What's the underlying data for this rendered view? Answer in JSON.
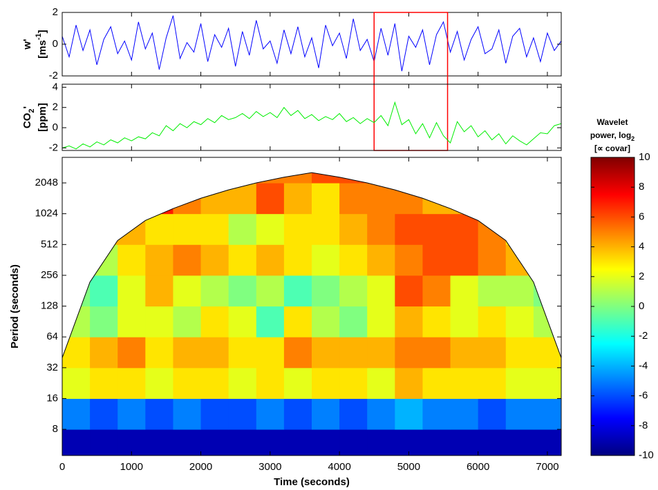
{
  "chart_data": [
    {
      "type": "line",
      "ylabel": [
        "w'",
        "[ms",
        "-1",
        "]"
      ],
      "color": "#0000ff",
      "xlim": [
        0,
        7200
      ],
      "xticks": [
        0,
        1000,
        2000,
        3000,
        4000,
        5000,
        6000,
        7000
      ],
      "ylim": [
        -2,
        2
      ],
      "yticks": [
        -2,
        0,
        2
      ],
      "highlight_x": [
        4500,
        5560
      ],
      "highlight_color": "#ff0000",
      "x": [
        0,
        100,
        200,
        300,
        400,
        500,
        600,
        700,
        800,
        900,
        1000,
        1100,
        1200,
        1300,
        1400,
        1500,
        1600,
        1700,
        1800,
        1900,
        2000,
        2100,
        2200,
        2300,
        2400,
        2500,
        2600,
        2700,
        2800,
        2900,
        3000,
        3100,
        3200,
        3300,
        3400,
        3500,
        3600,
        3700,
        3800,
        3900,
        4000,
        4100,
        4200,
        4300,
        4400,
        4500,
        4600,
        4700,
        4800,
        4900,
        5000,
        5100,
        5200,
        5300,
        5400,
        5500,
        5600,
        5700,
        5800,
        5900,
        6000,
        6100,
        6200,
        6300,
        6400,
        6500,
        6600,
        6700,
        6800,
        6900,
        7000,
        7100,
        7200
      ],
      "values": [
        0.5,
        -0.8,
        1.2,
        -0.4,
        0.9,
        -1.3,
        0.3,
        1.1,
        -0.6,
        0.2,
        -1.0,
        1.4,
        -0.3,
        0.7,
        -1.6,
        0.4,
        1.8,
        -0.9,
        0.1,
        -0.5,
        1.3,
        -1.1,
        0.6,
        -0.2,
        1.0,
        -1.4,
        0.8,
        -0.7,
        1.5,
        -0.3,
        0.2,
        -1.2,
        0.9,
        -0.6,
        1.1,
        -0.8,
        0.4,
        -1.5,
        1.2,
        -0.1,
        0.7,
        -0.9,
        1.6,
        -0.4,
        0.3,
        -1.1,
        1.0,
        -0.7,
        1.3,
        -1.7,
        0.5,
        -0.2,
        0.9,
        -1.3,
        0.6,
        1.4,
        -0.5,
        0.8,
        -1.0,
        0.3,
        1.1,
        -0.6,
        -0.3,
        0.9,
        -1.2,
        0.5,
        1.0,
        -0.8,
        0.4,
        -1.1,
        0.7,
        -0.4,
        0.2
      ]
    },
    {
      "type": "line",
      "ylabel": [
        "CO",
        "2",
        "'",
        "[ppm]"
      ],
      "color": "#00ee00",
      "xlim": [
        0,
        7200
      ],
      "xticks": [
        0,
        1000,
        2000,
        3000,
        4000,
        5000,
        6000,
        7000
      ],
      "ylim": [
        -2.25,
        4.3
      ],
      "yticks": [
        -2,
        0,
        2,
        4
      ],
      "x": [
        0,
        100,
        200,
        300,
        400,
        500,
        600,
        700,
        800,
        900,
        1000,
        1100,
        1200,
        1300,
        1400,
        1500,
        1600,
        1700,
        1800,
        1900,
        2000,
        2100,
        2200,
        2300,
        2400,
        2500,
        2600,
        2700,
        2800,
        2900,
        3000,
        3100,
        3200,
        3300,
        3400,
        3500,
        3600,
        3700,
        3800,
        3900,
        4000,
        4100,
        4200,
        4300,
        4400,
        4500,
        4600,
        4700,
        4800,
        4900,
        5000,
        5100,
        5200,
        5300,
        5400,
        5500,
        5600,
        5700,
        5800,
        5900,
        6000,
        6100,
        6200,
        6300,
        6400,
        6500,
        6600,
        6700,
        6800,
        6900,
        7000,
        7100,
        7200
      ],
      "values": [
        -2.0,
        -1.8,
        -2.1,
        -1.6,
        -1.9,
        -1.4,
        -1.7,
        -1.2,
        -1.5,
        -1.0,
        -1.3,
        -0.9,
        -1.1,
        -0.5,
        -0.8,
        0.2,
        -0.3,
        0.4,
        0.0,
        0.6,
        0.3,
        0.9,
        0.5,
        1.2,
        0.8,
        1.0,
        1.4,
        0.9,
        1.6,
        1.1,
        1.5,
        1.0,
        2.0,
        1.2,
        1.7,
        0.9,
        1.3,
        0.7,
        1.1,
        0.8,
        1.4,
        0.6,
        1.0,
        0.4,
        0.9,
        0.5,
        1.2,
        0.2,
        2.5,
        0.3,
        0.8,
        -0.6,
        0.4,
        -1.0,
        0.5,
        -0.8,
        -1.5,
        0.6,
        -0.4,
        0.2,
        -0.9,
        -0.3,
        -1.2,
        -0.6,
        -1.6,
        -0.8,
        -1.3,
        -1.7,
        -1.1,
        -0.5,
        -0.6,
        0.2,
        0.4
      ]
    },
    {
      "type": "heatmap",
      "xlabel": "Time (seconds)",
      "ylabel": "Period (seconds)",
      "log_y": true,
      "xlim": [
        0,
        7200
      ],
      "xticks": [
        0,
        1000,
        2000,
        3000,
        4000,
        5000,
        6000,
        7000
      ],
      "ylim": [
        4.44,
        3640
      ],
      "yticks": [
        8,
        16,
        32,
        64,
        128,
        256,
        512,
        1024,
        2048
      ],
      "time_edges": [
        0,
        400,
        800,
        1200,
        1600,
        2000,
        2400,
        2800,
        3200,
        3600,
        4000,
        4400,
        4800,
        5200,
        5600,
        6000,
        6400,
        6800,
        7200
      ],
      "period_edges": [
        4,
        8,
        16,
        32,
        64,
        128,
        256,
        512,
        1024,
        2048,
        4096
      ],
      "values": [
        [
          -9,
          -9,
          -9,
          -9,
          -9,
          -9,
          -9,
          -9,
          -9,
          -9,
          -9,
          -9,
          -9,
          -9,
          -9,
          -9,
          -9,
          -9
        ],
        [
          -5,
          -6,
          -5,
          -6,
          -5,
          -6,
          -6,
          -5,
          -6,
          -5,
          -6,
          -5,
          -4,
          -5,
          -5,
          -6,
          -5,
          -5
        ],
        [
          2,
          3,
          3,
          2,
          3,
          3,
          2,
          3,
          2,
          3,
          3,
          2,
          4,
          3,
          3,
          3,
          2,
          2
        ],
        [
          3,
          4,
          5,
          3,
          4,
          4,
          3,
          3,
          5,
          4,
          4,
          4,
          5,
          5,
          4,
          4,
          3,
          3
        ],
        [
          1,
          0,
          2,
          2,
          1,
          3,
          2,
          -1,
          3,
          1,
          0,
          2,
          4,
          3,
          2,
          3,
          2,
          1
        ],
        [
          0,
          -1,
          2,
          4,
          2,
          1,
          0,
          1,
          -1,
          0,
          1,
          2,
          6,
          5,
          2,
          1,
          1,
          0
        ],
        [
          2,
          1,
          3,
          4,
          5,
          4,
          3,
          4,
          3,
          2,
          3,
          4,
          5,
          6,
          6,
          5,
          4,
          3
        ],
        [
          4,
          4,
          4,
          3,
          3,
          3,
          1,
          2,
          3,
          3,
          4,
          5,
          6,
          6,
          6,
          5,
          3,
          3
        ],
        [
          6,
          7,
          8,
          7,
          5,
          4,
          4,
          6,
          4,
          3,
          5,
          5,
          5,
          4,
          4,
          3,
          3,
          3
        ],
        [
          5,
          5,
          5,
          6,
          6,
          6,
          5,
          5,
          5,
          6,
          6,
          5,
          5,
          5,
          4,
          4,
          4,
          4
        ]
      ],
      "coi": [
        40,
        220,
        560,
        880,
        1150,
        1450,
        1750,
        2050,
        2330,
        2580,
        2330,
        2050,
        1750,
        1450,
        1150,
        880,
        560,
        220,
        40
      ],
      "colorbar": {
        "title": [
          "Wavelet",
          "power, log",
          "2",
          "[∝ covar]"
        ],
        "colormap": "jet",
        "clim": [
          -10,
          10
        ],
        "ticks": [
          -10,
          -8,
          -6,
          -4,
          -2,
          0,
          2,
          4,
          6,
          8,
          10
        ]
      }
    }
  ]
}
